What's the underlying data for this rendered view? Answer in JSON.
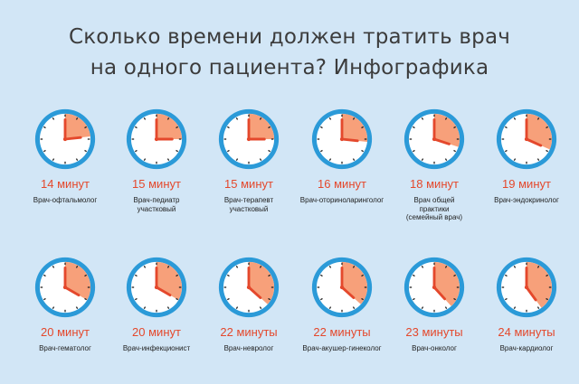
{
  "title": {
    "line1": "Сколько времени должен тратить врач",
    "line2": "на одного пациента? Инфографика"
  },
  "colors": {
    "background": "#d2e6f6",
    "clock_ring": "#2b9ad8",
    "clock_face": "#ffffff",
    "elapsed_sector": "#f7a07a",
    "hands": "#e4482c",
    "minutes_text": "#e4482c",
    "title_text": "#3c3c3c"
  },
  "items": [
    {
      "minutes_label": "14 минут",
      "elapsed_minutes": 14,
      "doctor_lines": [
        "Врач-офтальмолог"
      ]
    },
    {
      "minutes_label": "15 минут",
      "elapsed_minutes": 15,
      "doctor_lines": [
        "Врач-педиатр",
        "участковый"
      ]
    },
    {
      "minutes_label": "15 минут",
      "elapsed_minutes": 15,
      "doctor_lines": [
        "Врач-терапевт",
        "участковый"
      ]
    },
    {
      "minutes_label": "16 минут",
      "elapsed_minutes": 16,
      "doctor_lines": [
        "Врач-оториноларинголог"
      ]
    },
    {
      "minutes_label": "18 минут",
      "elapsed_minutes": 18,
      "doctor_lines": [
        "Врач общей",
        "практики",
        "(семейный врач)"
      ]
    },
    {
      "minutes_label": "19 минут",
      "elapsed_minutes": 19,
      "doctor_lines": [
        "Врач-эндокринолог"
      ]
    },
    {
      "minutes_label": "20 минут",
      "elapsed_minutes": 20,
      "doctor_lines": [
        "Врач-гематолог"
      ]
    },
    {
      "minutes_label": "20 минут",
      "elapsed_minutes": 20,
      "doctor_lines": [
        "Врач-инфекционист"
      ]
    },
    {
      "minutes_label": "22 минуты",
      "elapsed_minutes": 22,
      "doctor_lines": [
        "Врач-невролог"
      ]
    },
    {
      "minutes_label": "22 минуты",
      "elapsed_minutes": 22,
      "doctor_lines": [
        "Врач-акушер-гинеколог"
      ]
    },
    {
      "minutes_label": "23 минуты",
      "elapsed_minutes": 23,
      "doctor_lines": [
        "Врач-онколог"
      ]
    },
    {
      "minutes_label": "24 минуты",
      "elapsed_minutes": 24,
      "doctor_lines": [
        "Врач-кардиолог"
      ]
    }
  ]
}
